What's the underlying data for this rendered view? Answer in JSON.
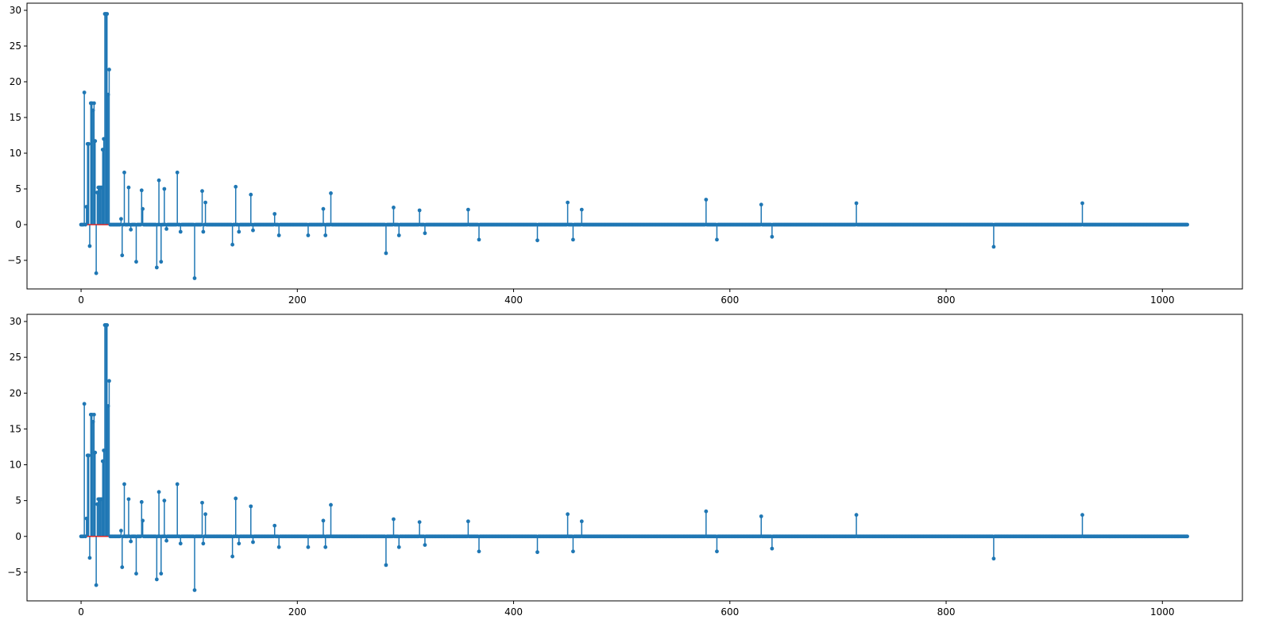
{
  "colors": {
    "stem": "#1f77b4",
    "baseline": "#d62728",
    "frame": "#000000"
  },
  "chart_data": [
    {
      "type": "stem",
      "title": "",
      "xlabel": "",
      "ylabel": "",
      "xlim": [
        -50,
        1074
      ],
      "ylim": [
        -9,
        31
      ],
      "xticks": [
        "0",
        "200",
        "400",
        "600",
        "800",
        "1000"
      ],
      "yticks": [
        "−5",
        "0",
        "5",
        "10",
        "15",
        "20",
        "25",
        "30"
      ],
      "xtick_values": [
        0,
        200,
        400,
        600,
        800,
        1000
      ],
      "ytick_values": [
        -5,
        0,
        5,
        10,
        15,
        20,
        25,
        30
      ],
      "grid": false,
      "legend": "none",
      "n_points": 1024,
      "baseline": 0,
      "nonzero": [
        [
          3,
          18.5
        ],
        [
          5,
          2.5
        ],
        [
          6,
          11.3
        ],
        [
          7,
          11.3
        ],
        [
          8,
          -3.0
        ],
        [
          9,
          17.0
        ],
        [
          10,
          17.0
        ],
        [
          11,
          16.0
        ],
        [
          12,
          17.0
        ],
        [
          13,
          11.7
        ],
        [
          14,
          -6.8
        ],
        [
          15,
          4.5
        ],
        [
          16,
          5.2
        ],
        [
          17,
          5.2
        ],
        [
          18,
          5.2
        ],
        [
          19,
          5.2
        ],
        [
          20,
          10.5
        ],
        [
          21,
          12.0
        ],
        [
          22,
          29.5
        ],
        [
          23,
          29.5
        ],
        [
          24,
          29.5
        ],
        [
          25,
          18.2
        ],
        [
          26,
          21.7
        ],
        [
          37,
          0.8
        ],
        [
          38,
          -4.3
        ],
        [
          40,
          7.3
        ],
        [
          44,
          5.2
        ],
        [
          46,
          -0.7
        ],
        [
          51,
          -5.2
        ],
        [
          56,
          4.8
        ],
        [
          57,
          2.2
        ],
        [
          70,
          -6.0
        ],
        [
          72,
          6.2
        ],
        [
          74,
          -5.2
        ],
        [
          77,
          5.0
        ],
        [
          79,
          -0.6
        ],
        [
          89,
          7.3
        ],
        [
          92,
          -1.0
        ],
        [
          105,
          -7.5
        ],
        [
          112,
          4.7
        ],
        [
          113,
          -1.0
        ],
        [
          115,
          3.1
        ],
        [
          140,
          -2.8
        ],
        [
          143,
          5.3
        ],
        [
          146,
          -1.0
        ],
        [
          157,
          4.2
        ],
        [
          159,
          -0.8
        ],
        [
          179,
          1.5
        ],
        [
          183,
          -1.5
        ],
        [
          210,
          -1.5
        ],
        [
          224,
          2.2
        ],
        [
          226,
          -1.5
        ],
        [
          231,
          4.4
        ],
        [
          282,
          -4.0
        ],
        [
          289,
          2.4
        ],
        [
          294,
          -1.5
        ],
        [
          313,
          2.0
        ],
        [
          318,
          -1.2
        ],
        [
          358,
          2.1
        ],
        [
          368,
          -2.1
        ],
        [
          422,
          -2.2
        ],
        [
          450,
          3.1
        ],
        [
          455,
          -2.1
        ],
        [
          463,
          2.1
        ],
        [
          578,
          3.5
        ],
        [
          588,
          -2.1
        ],
        [
          629,
          2.8
        ],
        [
          639,
          -1.7
        ],
        [
          717,
          3.0
        ],
        [
          844,
          -3.1
        ],
        [
          926,
          3.0
        ]
      ]
    },
    {
      "type": "stem",
      "title": "",
      "xlabel": "",
      "ylabel": "",
      "xlim": [
        -50,
        1074
      ],
      "ylim": [
        -9,
        31
      ],
      "xticks": [
        "0",
        "200",
        "400",
        "600",
        "800",
        "1000"
      ],
      "yticks": [
        "−5",
        "0",
        "5",
        "10",
        "15",
        "20",
        "25",
        "30"
      ],
      "xtick_values": [
        0,
        200,
        400,
        600,
        800,
        1000
      ],
      "ytick_values": [
        -5,
        0,
        5,
        10,
        15,
        20,
        25,
        30
      ],
      "grid": false,
      "legend": "none",
      "n_points": 1024,
      "baseline": 0,
      "nonzero": [
        [
          3,
          18.5
        ],
        [
          5,
          2.5
        ],
        [
          6,
          11.3
        ],
        [
          7,
          11.3
        ],
        [
          8,
          -3.0
        ],
        [
          9,
          17.0
        ],
        [
          10,
          17.0
        ],
        [
          11,
          16.0
        ],
        [
          12,
          17.0
        ],
        [
          13,
          11.7
        ],
        [
          14,
          -6.8
        ],
        [
          15,
          4.5
        ],
        [
          16,
          5.2
        ],
        [
          17,
          5.2
        ],
        [
          18,
          5.2
        ],
        [
          19,
          5.2
        ],
        [
          20,
          10.5
        ],
        [
          21,
          12.0
        ],
        [
          22,
          29.5
        ],
        [
          23,
          29.5
        ],
        [
          24,
          29.5
        ],
        [
          25,
          18.2
        ],
        [
          26,
          21.7
        ],
        [
          37,
          0.8
        ],
        [
          38,
          -4.3
        ],
        [
          40,
          7.3
        ],
        [
          44,
          5.2
        ],
        [
          46,
          -0.7
        ],
        [
          51,
          -5.2
        ],
        [
          56,
          4.8
        ],
        [
          57,
          2.2
        ],
        [
          70,
          -6.0
        ],
        [
          72,
          6.2
        ],
        [
          74,
          -5.2
        ],
        [
          77,
          5.0
        ],
        [
          79,
          -0.6
        ],
        [
          89,
          7.3
        ],
        [
          92,
          -1.0
        ],
        [
          105,
          -7.5
        ],
        [
          112,
          4.7
        ],
        [
          113,
          -1.0
        ],
        [
          115,
          3.1
        ],
        [
          140,
          -2.8
        ],
        [
          143,
          5.3
        ],
        [
          146,
          -1.0
        ],
        [
          157,
          4.2
        ],
        [
          159,
          -0.8
        ],
        [
          179,
          1.5
        ],
        [
          183,
          -1.5
        ],
        [
          210,
          -1.5
        ],
        [
          224,
          2.2
        ],
        [
          226,
          -1.5
        ],
        [
          231,
          4.4
        ],
        [
          282,
          -4.0
        ],
        [
          289,
          2.4
        ],
        [
          294,
          -1.5
        ],
        [
          313,
          2.0
        ],
        [
          318,
          -1.2
        ],
        [
          358,
          2.1
        ],
        [
          368,
          -2.1
        ],
        [
          422,
          -2.2
        ],
        [
          450,
          3.1
        ],
        [
          455,
          -2.1
        ],
        [
          463,
          2.1
        ],
        [
          578,
          3.5
        ],
        [
          588,
          -2.1
        ],
        [
          629,
          2.8
        ],
        [
          639,
          -1.7
        ],
        [
          717,
          3.0
        ],
        [
          844,
          -3.1
        ],
        [
          926,
          3.0
        ]
      ]
    }
  ]
}
